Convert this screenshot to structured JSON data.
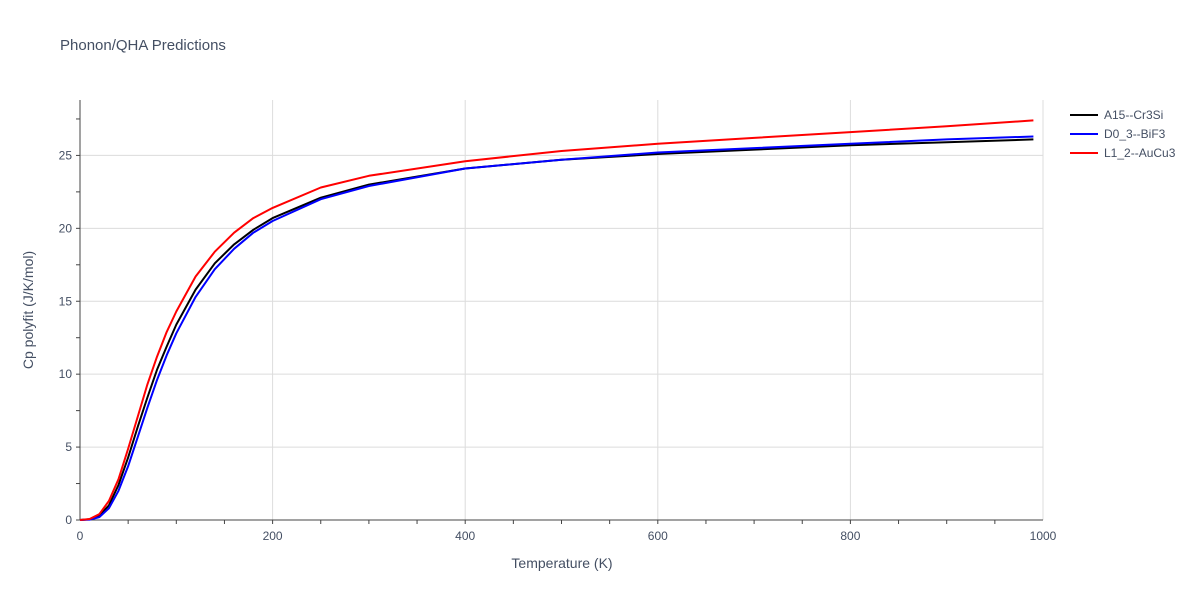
{
  "chart_data": {
    "type": "line",
    "title": "Phonon/QHA Predictions",
    "xlabel": "Temperature (K)",
    "ylabel": "Cp polyfit (J/K/mol)",
    "xlim": [
      0,
      1000
    ],
    "ylim": [
      0,
      28.8
    ],
    "x_ticks": [
      0,
      200,
      400,
      600,
      800,
      1000
    ],
    "y_ticks": [
      0,
      5,
      10,
      15,
      20,
      25
    ],
    "grid": true,
    "legend_position": "top-right",
    "series": [
      {
        "name": "A15--Cr3Si",
        "color": "#000000",
        "x": [
          0,
          10,
          20,
          30,
          40,
          50,
          60,
          70,
          80,
          90,
          100,
          120,
          140,
          160,
          180,
          200,
          250,
          300,
          400,
          500,
          600,
          700,
          800,
          900,
          990
        ],
        "y": [
          0,
          0.05,
          0.3,
          1.0,
          2.4,
          4.3,
          6.4,
          8.4,
          10.3,
          11.9,
          13.4,
          15.8,
          17.6,
          18.9,
          19.9,
          20.7,
          22.1,
          23.0,
          24.1,
          24.7,
          25.1,
          25.4,
          25.7,
          25.9,
          26.1
        ]
      },
      {
        "name": "D0_3--BiF3",
        "color": "#0000ff",
        "x": [
          0,
          10,
          20,
          30,
          40,
          50,
          60,
          70,
          80,
          90,
          100,
          120,
          140,
          160,
          180,
          200,
          250,
          300,
          400,
          500,
          600,
          700,
          800,
          900,
          990
        ],
        "y": [
          0,
          0.03,
          0.2,
          0.8,
          2.0,
          3.7,
          5.7,
          7.7,
          9.6,
          11.3,
          12.8,
          15.3,
          17.2,
          18.6,
          19.7,
          20.5,
          22.0,
          22.9,
          24.1,
          24.7,
          25.2,
          25.5,
          25.8,
          26.1,
          26.3
        ]
      },
      {
        "name": "L1_2--AuCu3",
        "color": "#ff0000",
        "x": [
          0,
          10,
          20,
          30,
          40,
          50,
          60,
          70,
          80,
          90,
          100,
          120,
          140,
          160,
          180,
          200,
          250,
          300,
          400,
          500,
          600,
          700,
          800,
          900,
          990
        ],
        "y": [
          0,
          0.07,
          0.4,
          1.3,
          2.8,
          4.9,
          7.1,
          9.3,
          11.2,
          12.9,
          14.3,
          16.7,
          18.4,
          19.7,
          20.7,
          21.4,
          22.8,
          23.6,
          24.6,
          25.3,
          25.8,
          26.2,
          26.6,
          27.0,
          27.4
        ]
      }
    ]
  }
}
